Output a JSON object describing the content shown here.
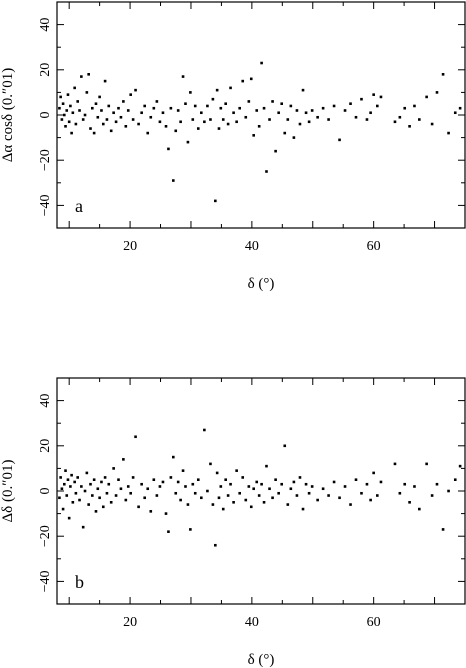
{
  "chart_data": [
    {
      "type": "scatter",
      "panel_label": "a",
      "xlabel": "δ (°)",
      "ylabel": "Δα cosδ (0.″01)",
      "xlim": [
        8,
        75
      ],
      "ylim": [
        -50,
        50
      ],
      "xticks": [
        20,
        40,
        60
      ],
      "yticks": [
        -40,
        -20,
        0,
        20,
        40
      ],
      "points": [
        [
          8.4,
          3
        ],
        [
          8.6,
          8
        ],
        [
          8.8,
          -2
        ],
        [
          9.0,
          5
        ],
        [
          9.2,
          0
        ],
        [
          9.4,
          -5
        ],
        [
          9.6,
          2
        ],
        [
          9.8,
          9
        ],
        [
          10.0,
          -3
        ],
        [
          10.2,
          4
        ],
        [
          10.4,
          -8
        ],
        [
          10.6,
          1
        ],
        [
          10.9,
          12
        ],
        [
          11.1,
          -4
        ],
        [
          11.4,
          6
        ],
        [
          11.7,
          2
        ],
        [
          12.0,
          17
        ],
        [
          12.3,
          -2
        ],
        [
          12.6,
          0
        ],
        [
          12.9,
          10
        ],
        [
          13.2,
          18
        ],
        [
          13.5,
          -6
        ],
        [
          13.8,
          3
        ],
        [
          14.1,
          -8
        ],
        [
          14.4,
          5
        ],
        [
          14.7,
          -1
        ],
        [
          15.0,
          8
        ],
        [
          15.3,
          2
        ],
        [
          15.6,
          -4
        ],
        [
          15.9,
          15
        ],
        [
          16.2,
          -2
        ],
        [
          16.5,
          4
        ],
        [
          16.9,
          -7
        ],
        [
          17.3,
          1
        ],
        [
          17.7,
          -3
        ],
        [
          18.1,
          3
        ],
        [
          18.5,
          -1
        ],
        [
          18.9,
          6
        ],
        [
          19.3,
          -5
        ],
        [
          19.7,
          2
        ],
        [
          20.1,
          9
        ],
        [
          20.5,
          -2
        ],
        [
          20.9,
          11
        ],
        [
          21.4,
          -4
        ],
        [
          21.9,
          1
        ],
        [
          22.4,
          4
        ],
        [
          22.9,
          -8
        ],
        [
          23.4,
          -1
        ],
        [
          23.9,
          3
        ],
        [
          24.4,
          6
        ],
        [
          24.9,
          -3
        ],
        [
          25.4,
          1
        ],
        [
          25.9,
          -5
        ],
        [
          26.3,
          -15
        ],
        [
          26.7,
          3
        ],
        [
          27.1,
          -29
        ],
        [
          27.5,
          -7
        ],
        [
          27.9,
          2
        ],
        [
          28.3,
          -3
        ],
        [
          28.7,
          17
        ],
        [
          29.1,
          5
        ],
        [
          29.5,
          -12
        ],
        [
          29.9,
          10
        ],
        [
          30.3,
          -2
        ],
        [
          30.7,
          4
        ],
        [
          31.2,
          -6
        ],
        [
          31.7,
          1
        ],
        [
          32.2,
          -3
        ],
        [
          32.7,
          4
        ],
        [
          33.2,
          -2
        ],
        [
          33.6,
          7
        ],
        [
          34.0,
          -38
        ],
        [
          34.3,
          11
        ],
        [
          34.6,
          -6
        ],
        [
          34.9,
          3
        ],
        [
          35.3,
          -2
        ],
        [
          35.7,
          5
        ],
        [
          36.1,
          -4
        ],
        [
          36.5,
          12
        ],
        [
          37.0,
          1
        ],
        [
          37.5,
          -3
        ],
        [
          38.0,
          3
        ],
        [
          38.5,
          15
        ],
        [
          39.0,
          -1
        ],
        [
          39.5,
          6
        ],
        [
          39.9,
          16
        ],
        [
          40.3,
          -9
        ],
        [
          40.8,
          2
        ],
        [
          41.2,
          -5
        ],
        [
          41.6,
          23
        ],
        [
          42.0,
          3
        ],
        [
          42.4,
          -25
        ],
        [
          42.9,
          -2
        ],
        [
          43.4,
          6
        ],
        [
          43.9,
          -16
        ],
        [
          44.4,
          1
        ],
        [
          44.9,
          5
        ],
        [
          45.4,
          -8
        ],
        [
          45.9,
          -2
        ],
        [
          46.4,
          4
        ],
        [
          46.9,
          -10
        ],
        [
          47.4,
          2
        ],
        [
          47.9,
          -4
        ],
        [
          48.4,
          11
        ],
        [
          48.9,
          1
        ],
        [
          49.4,
          -3
        ],
        [
          49.9,
          2
        ],
        [
          50.8,
          -1
        ],
        [
          51.7,
          3
        ],
        [
          52.6,
          -2
        ],
        [
          53.5,
          4
        ],
        [
          54.4,
          -11
        ],
        [
          55.3,
          2
        ],
        [
          56.2,
          5
        ],
        [
          57.1,
          -1
        ],
        [
          58.0,
          7
        ],
        [
          58.9,
          -2
        ],
        [
          59.5,
          1
        ],
        [
          60.0,
          9
        ],
        [
          60.6,
          4
        ],
        [
          61.2,
          8
        ],
        [
          63.5,
          -3
        ],
        [
          64.3,
          -1
        ],
        [
          65.1,
          3
        ],
        [
          65.9,
          -5
        ],
        [
          66.7,
          4
        ],
        [
          67.5,
          -2
        ],
        [
          68.7,
          8
        ],
        [
          69.6,
          -4
        ],
        [
          70.4,
          10
        ],
        [
          71.4,
          18
        ],
        [
          72.3,
          -8
        ],
        [
          73.4,
          1
        ],
        [
          74.2,
          3
        ]
      ]
    },
    {
      "type": "scatter",
      "panel_label": "b",
      "xlabel": "δ (°)",
      "ylabel": "Δδ (0.″01)",
      "xlim": [
        8,
        75
      ],
      "ylim": [
        -50,
        50
      ],
      "xticks": [
        20,
        40,
        60
      ],
      "yticks": [
        -40,
        -20,
        0,
        20,
        40
      ],
      "points": [
        [
          8.4,
          -3
        ],
        [
          8.6,
          6
        ],
        [
          8.8,
          1
        ],
        [
          9.0,
          -8
        ],
        [
          9.2,
          3
        ],
        [
          9.4,
          9
        ],
        [
          9.6,
          -2
        ],
        [
          9.8,
          5
        ],
        [
          10.0,
          -12
        ],
        [
          10.2,
          2
        ],
        [
          10.4,
          7
        ],
        [
          10.6,
          -5
        ],
        [
          10.9,
          4
        ],
        [
          11.1,
          -1
        ],
        [
          11.4,
          6
        ],
        [
          11.7,
          -4
        ],
        [
          12.0,
          2
        ],
        [
          12.3,
          -16
        ],
        [
          12.6,
          0
        ],
        [
          12.9,
          8
        ],
        [
          13.2,
          -6
        ],
        [
          13.5,
          3
        ],
        [
          13.8,
          -2
        ],
        [
          14.1,
          5
        ],
        [
          14.4,
          -9
        ],
        [
          14.7,
          1
        ],
        [
          15.0,
          -3
        ],
        [
          15.3,
          4
        ],
        [
          15.6,
          -7
        ],
        [
          15.9,
          6
        ],
        [
          16.2,
          -1
        ],
        [
          16.5,
          3
        ],
        [
          16.9,
          -5
        ],
        [
          17.3,
          10
        ],
        [
          17.7,
          -2
        ],
        [
          18.1,
          5
        ],
        [
          18.5,
          1
        ],
        [
          18.9,
          14
        ],
        [
          19.3,
          -4
        ],
        [
          19.7,
          2
        ],
        [
          20.1,
          -1
        ],
        [
          20.5,
          6
        ],
        [
          20.9,
          24
        ],
        [
          21.4,
          -7
        ],
        [
          21.9,
          3
        ],
        [
          22.4,
          -3
        ],
        [
          22.9,
          1
        ],
        [
          23.4,
          -9
        ],
        [
          23.9,
          5
        ],
        [
          24.4,
          -2
        ],
        [
          24.9,
          2
        ],
        [
          25.4,
          4
        ],
        [
          25.9,
          -10
        ],
        [
          26.3,
          -18
        ],
        [
          26.7,
          6
        ],
        [
          27.1,
          15
        ],
        [
          27.5,
          -1
        ],
        [
          27.9,
          4
        ],
        [
          28.3,
          -4
        ],
        [
          28.7,
          9
        ],
        [
          29.1,
          2
        ],
        [
          29.5,
          -6
        ],
        [
          29.9,
          -17
        ],
        [
          30.3,
          3
        ],
        [
          30.7,
          -1
        ],
        [
          31.2,
          5
        ],
        [
          31.7,
          -3
        ],
        [
          32.2,
          27
        ],
        [
          32.7,
          0
        ],
        [
          33.2,
          12
        ],
        [
          33.6,
          -6
        ],
        [
          34.0,
          -24
        ],
        [
          34.3,
          8
        ],
        [
          34.6,
          -3
        ],
        [
          34.9,
          2
        ],
        [
          35.3,
          -8
        ],
        [
          35.7,
          5
        ],
        [
          36.1,
          -2
        ],
        [
          36.5,
          3
        ],
        [
          37.0,
          -5
        ],
        [
          37.5,
          9
        ],
        [
          38.0,
          -1
        ],
        [
          38.5,
          6
        ],
        [
          39.0,
          -4
        ],
        [
          39.5,
          2
        ],
        [
          39.9,
          -7
        ],
        [
          40.3,
          1
        ],
        [
          40.8,
          4
        ],
        [
          41.2,
          -2
        ],
        [
          41.6,
          3
        ],
        [
          42.0,
          -5
        ],
        [
          42.4,
          11
        ],
        [
          42.9,
          1
        ],
        [
          43.4,
          -3
        ],
        [
          43.9,
          5
        ],
        [
          44.4,
          -1
        ],
        [
          44.9,
          3
        ],
        [
          45.4,
          20
        ],
        [
          45.9,
          -6
        ],
        [
          46.4,
          1
        ],
        [
          46.9,
          4
        ],
        [
          47.4,
          -2
        ],
        [
          47.9,
          6
        ],
        [
          48.4,
          -8
        ],
        [
          48.9,
          3
        ],
        [
          49.4,
          -1
        ],
        [
          49.9,
          2
        ],
        [
          50.8,
          -4
        ],
        [
          51.7,
          1
        ],
        [
          52.6,
          -2
        ],
        [
          53.5,
          4
        ],
        [
          54.4,
          -3
        ],
        [
          55.3,
          2
        ],
        [
          56.2,
          -6
        ],
        [
          57.1,
          5
        ],
        [
          58.0,
          -1
        ],
        [
          58.9,
          3
        ],
        [
          59.5,
          -4
        ],
        [
          60.0,
          8
        ],
        [
          60.6,
          -2
        ],
        [
          61.2,
          4
        ],
        [
          63.5,
          12
        ],
        [
          64.3,
          -1
        ],
        [
          65.1,
          3
        ],
        [
          65.9,
          -5
        ],
        [
          66.7,
          2
        ],
        [
          67.5,
          -8
        ],
        [
          68.7,
          12
        ],
        [
          69.6,
          -2
        ],
        [
          70.4,
          3
        ],
        [
          71.4,
          -17
        ],
        [
          72.3,
          0
        ],
        [
          73.4,
          5
        ],
        [
          74.2,
          11
        ]
      ]
    }
  ]
}
